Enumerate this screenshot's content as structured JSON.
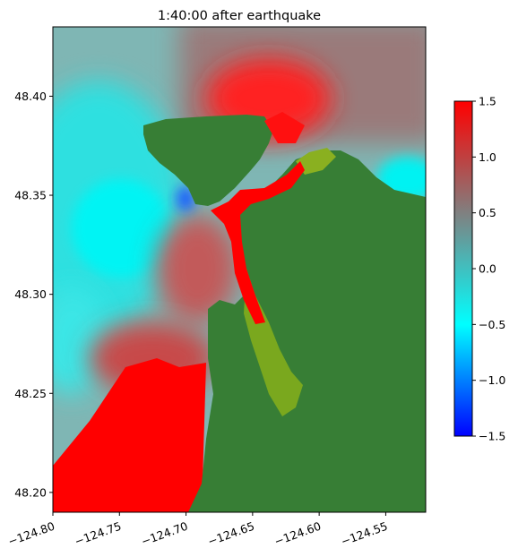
{
  "chart_data": {
    "type": "heatmap",
    "title": "1:40:00 after earthquake",
    "xlabel": "",
    "ylabel": "",
    "xlim": [
      -124.8,
      -124.52
    ],
    "ylim": [
      48.19,
      48.435
    ],
    "x_ticks": [
      -124.8,
      -124.75,
      -124.7,
      -124.65,
      -124.6,
      -124.55
    ],
    "x_tick_labels": [
      "−124.80",
      "−124.75",
      "−124.70",
      "−124.65",
      "−124.60",
      "−124.55"
    ],
    "y_ticks": [
      48.2,
      48.25,
      48.3,
      48.35,
      48.4
    ],
    "y_tick_labels": [
      "48.20",
      "48.25",
      "48.30",
      "48.35",
      "48.40"
    ],
    "colorbar": {
      "range": [
        -1.5,
        1.5
      ],
      "ticks": [
        -1.5,
        -1.0,
        -0.5,
        0.0,
        0.5,
        1.0,
        1.5
      ],
      "tick_labels": [
        "−1.5",
        "−1.0",
        "−0.5",
        "0.0",
        "0.5",
        "1.0",
        "1.5"
      ],
      "colors": [
        "#0000ff",
        "#00ffff",
        "#808080",
        "#ff0000"
      ]
    },
    "land_color": "#377e35",
    "grid": false
  }
}
